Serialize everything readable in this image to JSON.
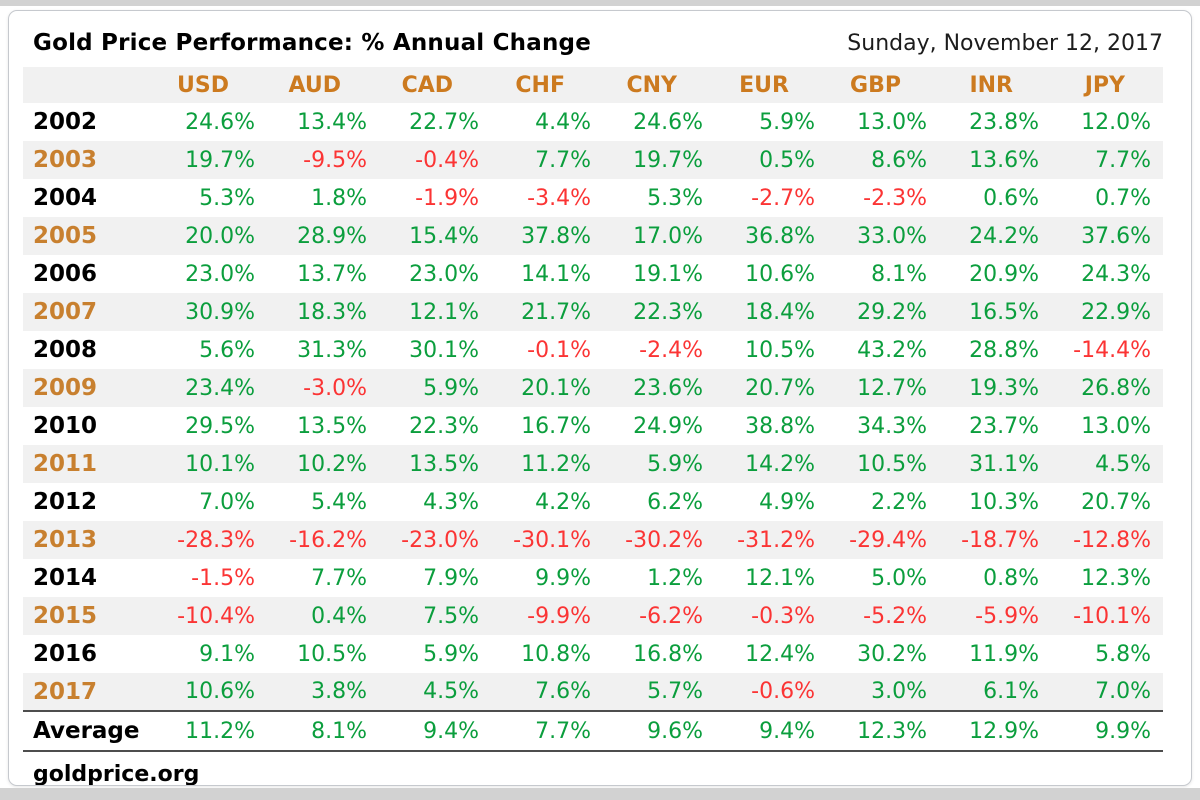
{
  "header": {
    "title": "Gold Price Performance: % Annual Change",
    "date": "Sunday, November 12, 2017"
  },
  "footer": {
    "site": "goldprice.org"
  },
  "colors": {
    "positive": "#0b9e3d",
    "negative": "#fb3434",
    "currency_header": "#cc7a1f",
    "year_alternate": "#c8802f",
    "row_stripe": "#f1f1f1",
    "page_strip": "#d2d2d2"
  },
  "chart_data": {
    "type": "table",
    "title": "Gold Price Performance: % Annual Change",
    "unit": "percent",
    "columns": [
      "USD",
      "AUD",
      "CAD",
      "CHF",
      "CNY",
      "EUR",
      "GBP",
      "INR",
      "JPY"
    ],
    "rows": [
      {
        "year": "2002",
        "values": [
          24.6,
          13.4,
          22.7,
          4.4,
          24.6,
          5.9,
          13.0,
          23.8,
          12.0
        ]
      },
      {
        "year": "2003",
        "values": [
          19.7,
          -9.5,
          -0.4,
          7.7,
          19.7,
          0.5,
          8.6,
          13.6,
          7.7
        ]
      },
      {
        "year": "2004",
        "values": [
          5.3,
          1.8,
          -1.9,
          -3.4,
          5.3,
          -2.7,
          -2.3,
          0.6,
          0.7
        ]
      },
      {
        "year": "2005",
        "values": [
          20.0,
          28.9,
          15.4,
          37.8,
          17.0,
          36.8,
          33.0,
          24.2,
          37.6
        ]
      },
      {
        "year": "2006",
        "values": [
          23.0,
          13.7,
          23.0,
          14.1,
          19.1,
          10.6,
          8.1,
          20.9,
          24.3
        ]
      },
      {
        "year": "2007",
        "values": [
          30.9,
          18.3,
          12.1,
          21.7,
          22.3,
          18.4,
          29.2,
          16.5,
          22.9
        ]
      },
      {
        "year": "2008",
        "values": [
          5.6,
          31.3,
          30.1,
          -0.1,
          -2.4,
          10.5,
          43.2,
          28.8,
          -14.4
        ]
      },
      {
        "year": "2009",
        "values": [
          23.4,
          -3.0,
          5.9,
          20.1,
          23.6,
          20.7,
          12.7,
          19.3,
          26.8
        ]
      },
      {
        "year": "2010",
        "values": [
          29.5,
          13.5,
          22.3,
          16.7,
          24.9,
          38.8,
          34.3,
          23.7,
          13.0
        ]
      },
      {
        "year": "2011",
        "values": [
          10.1,
          10.2,
          13.5,
          11.2,
          5.9,
          14.2,
          10.5,
          31.1,
          4.5
        ]
      },
      {
        "year": "2012",
        "values": [
          7.0,
          5.4,
          4.3,
          4.2,
          6.2,
          4.9,
          2.2,
          10.3,
          20.7
        ]
      },
      {
        "year": "2013",
        "values": [
          -28.3,
          -16.2,
          -23.0,
          -30.1,
          -30.2,
          -31.2,
          -29.4,
          -18.7,
          -12.8
        ]
      },
      {
        "year": "2014",
        "values": [
          -1.5,
          7.7,
          7.9,
          9.9,
          1.2,
          12.1,
          5.0,
          0.8,
          12.3
        ]
      },
      {
        "year": "2015",
        "values": [
          -10.4,
          0.4,
          7.5,
          -9.9,
          -6.2,
          -0.3,
          -5.2,
          -5.9,
          -10.1
        ]
      },
      {
        "year": "2016",
        "values": [
          9.1,
          10.5,
          5.9,
          10.8,
          16.8,
          12.4,
          30.2,
          11.9,
          5.8
        ]
      },
      {
        "year": "2017",
        "values": [
          10.6,
          3.8,
          4.5,
          7.6,
          5.7,
          -0.6,
          3.0,
          6.1,
          7.0
        ]
      }
    ],
    "average": {
      "label": "Average",
      "values": [
        11.2,
        8.1,
        9.4,
        7.7,
        9.6,
        9.4,
        12.3,
        12.9,
        9.9
      ]
    }
  }
}
